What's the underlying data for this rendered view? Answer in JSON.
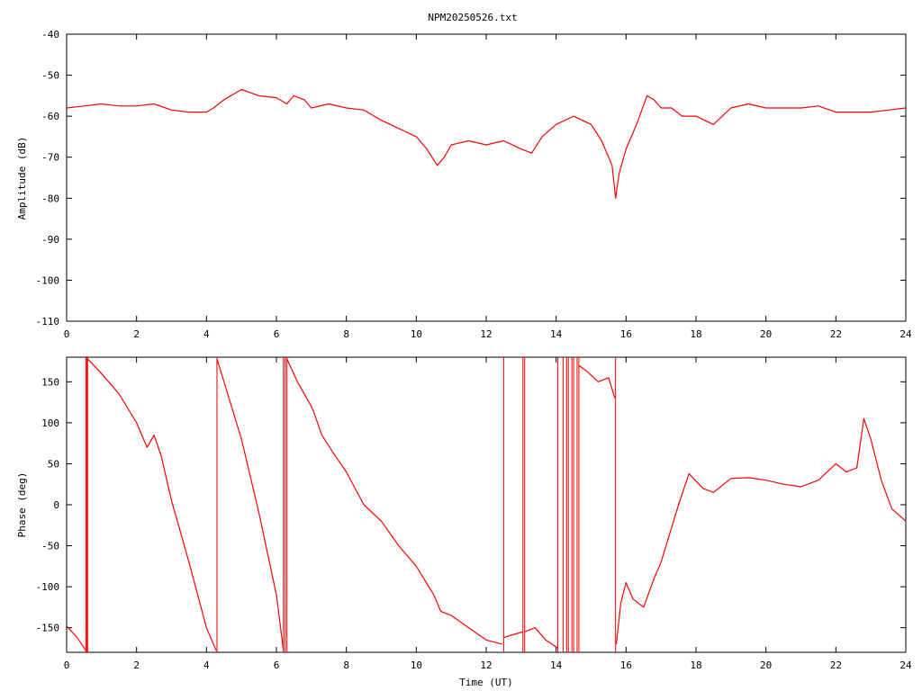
{
  "title": "NPM20250526.txt",
  "colors": {
    "series": "#ff0000",
    "axes": "#000000",
    "background": "#ffffff"
  },
  "chart_data": [
    {
      "type": "line",
      "title": "NPM20250526.txt",
      "xlabel": "",
      "ylabel": "Amplitude (dB)",
      "xlim": [
        0,
        24
      ],
      "ylim": [
        -110,
        -40
      ],
      "xticks": [
        0,
        2,
        4,
        6,
        8,
        10,
        12,
        14,
        16,
        18,
        20,
        22,
        24
      ],
      "yticks": [
        -40,
        -50,
        -60,
        -70,
        -80,
        -90,
        -100,
        -110
      ],
      "xtick_labels": [
        "0",
        "2",
        "4",
        "6",
        "8",
        "10",
        "12",
        "14",
        "16",
        "18",
        "20",
        "22",
        "24"
      ],
      "ytick_labels": [
        "-40",
        "-50",
        "-60",
        "-70",
        "-80",
        "-90",
        "-100",
        "-110"
      ],
      "grid": false,
      "series": [
        {
          "x": [
            0,
            0.5,
            1,
            1.5,
            2,
            2.5,
            3,
            3.5,
            4,
            4.2,
            4.5,
            5,
            5.5,
            6,
            6.3,
            6.5,
            6.8,
            7,
            7.5,
            8,
            8.5,
            9,
            9.5,
            10,
            10.3,
            10.6,
            10.8,
            11,
            11.5,
            12,
            12.5,
            13,
            13.3,
            13.6,
            14,
            14.5,
            15,
            15.3,
            15.6,
            15.7,
            15.8,
            16,
            16.3,
            16.6,
            16.8,
            17,
            17.3,
            17.6,
            18,
            18.5,
            19,
            19.5,
            20,
            20.5,
            21,
            21.5,
            22,
            22.5,
            23,
            23.5,
            24
          ],
          "y": [
            -58,
            -57.5,
            -57,
            -57.5,
            -57.5,
            -57,
            -58.5,
            -59,
            -59,
            -58,
            -56,
            -53.5,
            -55,
            -55.5,
            -57,
            -55,
            -56,
            -58,
            -57,
            -58,
            -58.5,
            -61,
            -63,
            -65,
            -68,
            -72,
            -70,
            -67,
            -66,
            -67,
            -66,
            -68,
            -69,
            -65,
            -62,
            -60,
            -62,
            -66,
            -72,
            -80,
            -74,
            -68,
            -62,
            -55,
            -56,
            -58,
            -58,
            -60,
            -60,
            -62,
            -58,
            -57,
            -58,
            -58,
            -58,
            -57.5,
            -59,
            -59,
            -59,
            -58.5,
            -58
          ]
        }
      ]
    },
    {
      "type": "line",
      "title": "",
      "xlabel": "Time (UT)",
      "ylabel": "Phase (deg)",
      "xlim": [
        0,
        24
      ],
      "ylim": [
        -180,
        180
      ],
      "xticks": [
        0,
        2,
        4,
        6,
        8,
        10,
        12,
        14,
        16,
        18,
        20,
        22,
        24
      ],
      "yticks": [
        150,
        100,
        50,
        0,
        -50,
        -100,
        -150
      ],
      "xtick_labels": [
        "0",
        "2",
        "4",
        "6",
        "8",
        "10",
        "12",
        "14",
        "16",
        "18",
        "20",
        "22",
        "24"
      ],
      "ytick_labels": [
        "150",
        "100",
        "50",
        "0",
        "-50",
        "-100",
        "-150"
      ],
      "grid": false,
      "wraps_x": [
        0.55,
        0.58,
        0.6,
        4.3,
        6.2,
        6.25,
        6.3,
        12.5,
        13.05,
        13.1,
        14.05,
        14.2,
        14.3,
        14.35,
        14.45,
        14.5,
        14.6,
        14.65,
        15.7
      ],
      "series": [
        {
          "x": [
            0,
            0.3,
            0.55
          ],
          "y": [
            -148,
            -162,
            -178
          ]
        },
        {
          "x": [
            0.6,
            1,
            1.5,
            2,
            2.3,
            2.5,
            2.7,
            3,
            3.5,
            4,
            4.28
          ],
          "y": [
            178,
            160,
            135,
            100,
            70,
            85,
            60,
            5,
            -70,
            -150,
            -178
          ]
        },
        {
          "x": [
            4.3,
            5,
            5.5,
            6,
            6.2
          ],
          "y": [
            178,
            80,
            -10,
            -110,
            -178
          ]
        },
        {
          "x": [
            6.3,
            6.6,
            7,
            7.05,
            7.3,
            7.6,
            8,
            8.5,
            9,
            9.5,
            10,
            10.5,
            10.7,
            11,
            11.5,
            12,
            12.45
          ],
          "y": [
            178,
            150,
            120,
            115,
            85,
            65,
            40,
            0,
            -20,
            -50,
            -75,
            -110,
            -130,
            -135,
            -150,
            -165,
            -170
          ]
        },
        {
          "x": [
            12.5,
            12.8,
            13.05
          ],
          "y": [
            -162,
            -158,
            -155
          ]
        },
        {
          "x": [
            13.1,
            13.4,
            13.7,
            14.05
          ],
          "y": [
            -155,
            -150,
            -165,
            -175
          ]
        },
        {
          "x": [
            14.65,
            14.9,
            15.2,
            15.5,
            15.68
          ],
          "y": [
            170,
            162,
            150,
            155,
            130
          ]
        },
        {
          "x": [
            15.72,
            15.85,
            16,
            16.2,
            16.5,
            16.8,
            17,
            17.5,
            17.8,
            18.2,
            18.5,
            19,
            19.5,
            20,
            20.5,
            21,
            21.5,
            22,
            22.3,
            22.6,
            22.8,
            23,
            23.3,
            23.6,
            24
          ],
          "y": [
            -170,
            -120,
            -95,
            -115,
            -125,
            -90,
            -70,
            0,
            38,
            20,
            15,
            32,
            33,
            30,
            25,
            22,
            30,
            50,
            40,
            45,
            105,
            80,
            30,
            -5,
            -20
          ]
        }
      ]
    }
  ]
}
